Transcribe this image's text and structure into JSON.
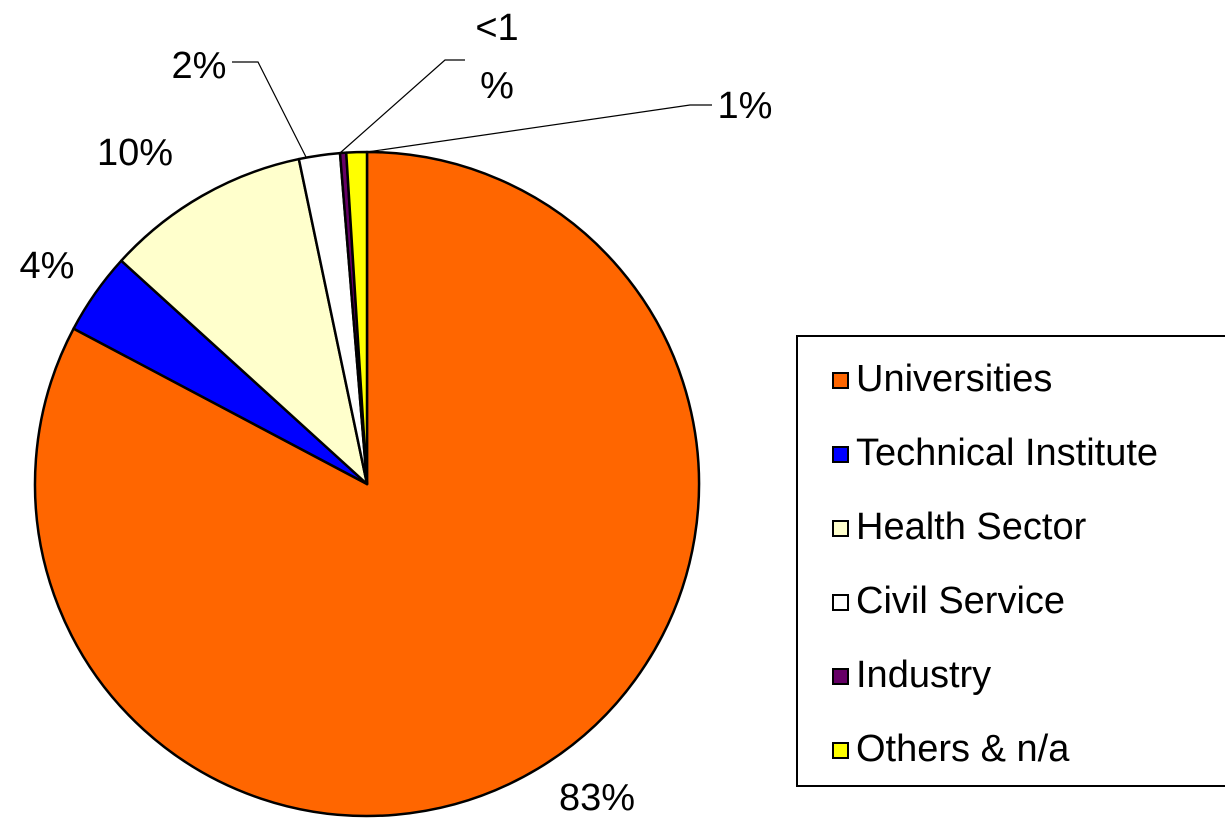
{
  "chart_data": {
    "type": "pie",
    "categories": [
      "Universities",
      "Technical Institute",
      "Health Sector",
      "Civil Service",
      "Industry",
      "Others & n/a"
    ],
    "values": [
      83,
      4,
      10,
      2,
      0.3,
      1
    ],
    "value_labels": [
      "83%",
      "4%",
      "10%",
      "2%",
      "<1 %",
      "1%"
    ],
    "colors": [
      "#ff6600",
      "#0000ff",
      "#ffffcc",
      "#ffffff",
      "#660066",
      "#ffff00"
    ],
    "legend": "right"
  }
}
